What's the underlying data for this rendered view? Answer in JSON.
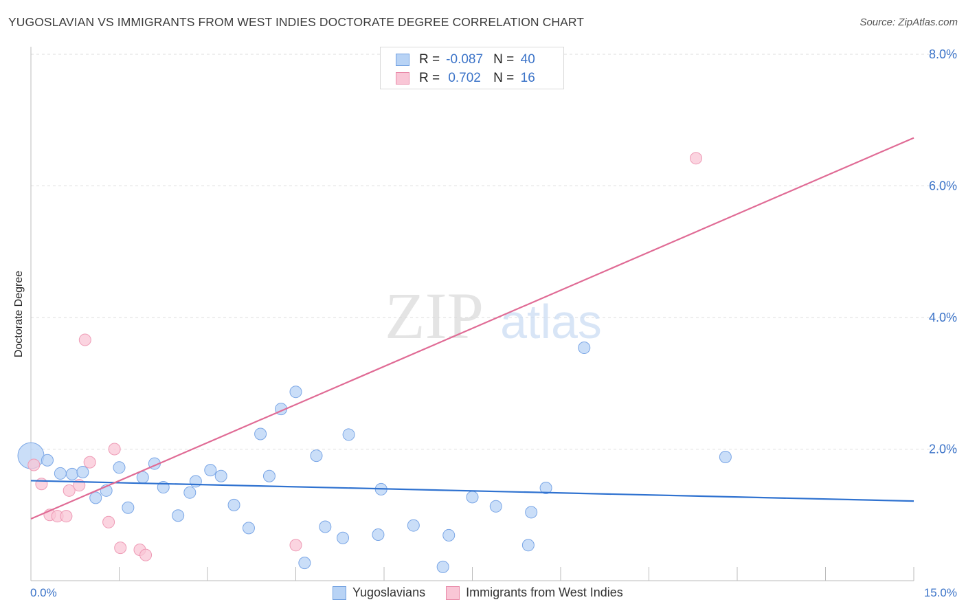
{
  "header": {
    "title": "YUGOSLAVIAN VS IMMIGRANTS FROM WEST INDIES DOCTORATE DEGREE CORRELATION CHART",
    "source": "Source: ZipAtlas.com"
  },
  "watermark": {
    "zip": "ZIP",
    "atlas": "atlas"
  },
  "stats_legend": [
    {
      "r_label": "R =",
      "r_value": "-0.087",
      "n_label": "N =",
      "n_value": "40",
      "color": "#b8d3f5",
      "border": "#6f9fe0"
    },
    {
      "r_label": "R =",
      "r_value": "0.702",
      "n_label": "N =",
      "n_value": "16",
      "color": "#f9c6d6",
      "border": "#e98aa9"
    }
  ],
  "chart_data": {
    "type": "scatter",
    "title": "YUGOSLAVIAN VS IMMIGRANTS FROM WEST INDIES DOCTORATE DEGREE CORRELATION CHART",
    "xlabel": "",
    "ylabel": "Doctorate Degree",
    "xlim": [
      0,
      15
    ],
    "ylim": [
      0,
      8
    ],
    "x_tick_labels": [
      "0.0%",
      "15.0%"
    ],
    "y_ticks": [
      2,
      4,
      6,
      8
    ],
    "y_tick_labels": [
      "2.0%",
      "4.0%",
      "6.0%",
      "8.0%"
    ],
    "grid": true,
    "legend": "bottom",
    "series": [
      {
        "name": "Yugoslavians",
        "color": "#b8d3f5",
        "edge": "#7aa6e6",
        "line_color": "#2f72d0",
        "trend": {
          "x": [
            0,
            15
          ],
          "y": [
            1.52,
            1.21
          ]
        },
        "points": [
          {
            "x": 0.0,
            "y": 1.9,
            "big": true
          },
          {
            "x": 0.28,
            "y": 1.83
          },
          {
            "x": 0.5,
            "y": 1.63
          },
          {
            "x": 0.7,
            "y": 1.62
          },
          {
            "x": 0.88,
            "y": 1.65
          },
          {
            "x": 1.1,
            "y": 1.26
          },
          {
            "x": 1.28,
            "y": 1.37
          },
          {
            "x": 1.5,
            "y": 1.72
          },
          {
            "x": 1.65,
            "y": 1.11
          },
          {
            "x": 1.9,
            "y": 1.57
          },
          {
            "x": 2.1,
            "y": 1.78
          },
          {
            "x": 2.25,
            "y": 1.42
          },
          {
            "x": 2.5,
            "y": 0.99
          },
          {
            "x": 2.7,
            "y": 1.34
          },
          {
            "x": 2.8,
            "y": 1.51
          },
          {
            "x": 3.05,
            "y": 1.68
          },
          {
            "x": 3.23,
            "y": 1.59
          },
          {
            "x": 3.45,
            "y": 1.15
          },
          {
            "x": 3.7,
            "y": 0.8
          },
          {
            "x": 3.9,
            "y": 2.23
          },
          {
            "x": 4.05,
            "y": 1.59
          },
          {
            "x": 4.25,
            "y": 2.61
          },
          {
            "x": 4.5,
            "y": 2.87
          },
          {
            "x": 4.65,
            "y": 0.27
          },
          {
            "x": 4.85,
            "y": 1.9
          },
          {
            "x": 5.0,
            "y": 0.82
          },
          {
            "x": 5.3,
            "y": 0.65
          },
          {
            "x": 5.4,
            "y": 2.22
          },
          {
            "x": 5.9,
            "y": 0.7
          },
          {
            "x": 5.95,
            "y": 1.39
          },
          {
            "x": 6.5,
            "y": 0.84
          },
          {
            "x": 7.0,
            "y": 0.21
          },
          {
            "x": 7.1,
            "y": 0.69
          },
          {
            "x": 7.5,
            "y": 1.27
          },
          {
            "x": 7.9,
            "y": 1.13
          },
          {
            "x": 8.45,
            "y": 0.54
          },
          {
            "x": 8.5,
            "y": 1.04
          },
          {
            "x": 8.75,
            "y": 1.41
          },
          {
            "x": 9.4,
            "y": 3.54
          },
          {
            "x": 11.8,
            "y": 1.88
          }
        ]
      },
      {
        "name": "Immigrants from West Indies",
        "color": "#f9c6d6",
        "edge": "#ee9ab5",
        "line_color": "#e06b95",
        "trend": {
          "x": [
            0,
            15
          ],
          "y": [
            0.94,
            6.73
          ]
        },
        "points": [
          {
            "x": 0.05,
            "y": 1.76
          },
          {
            "x": 0.18,
            "y": 1.47
          },
          {
            "x": 0.32,
            "y": 1.0
          },
          {
            "x": 0.45,
            "y": 0.98
          },
          {
            "x": 0.6,
            "y": 0.98
          },
          {
            "x": 0.65,
            "y": 1.37
          },
          {
            "x": 0.82,
            "y": 1.45
          },
          {
            "x": 0.92,
            "y": 3.66
          },
          {
            "x": 1.0,
            "y": 1.8
          },
          {
            "x": 1.32,
            "y": 0.89
          },
          {
            "x": 1.42,
            "y": 2.0
          },
          {
            "x": 1.52,
            "y": 0.5
          },
          {
            "x": 1.85,
            "y": 0.47
          },
          {
            "x": 1.95,
            "y": 0.39
          },
          {
            "x": 4.5,
            "y": 0.54
          },
          {
            "x": 11.3,
            "y": 6.42
          }
        ]
      }
    ]
  }
}
